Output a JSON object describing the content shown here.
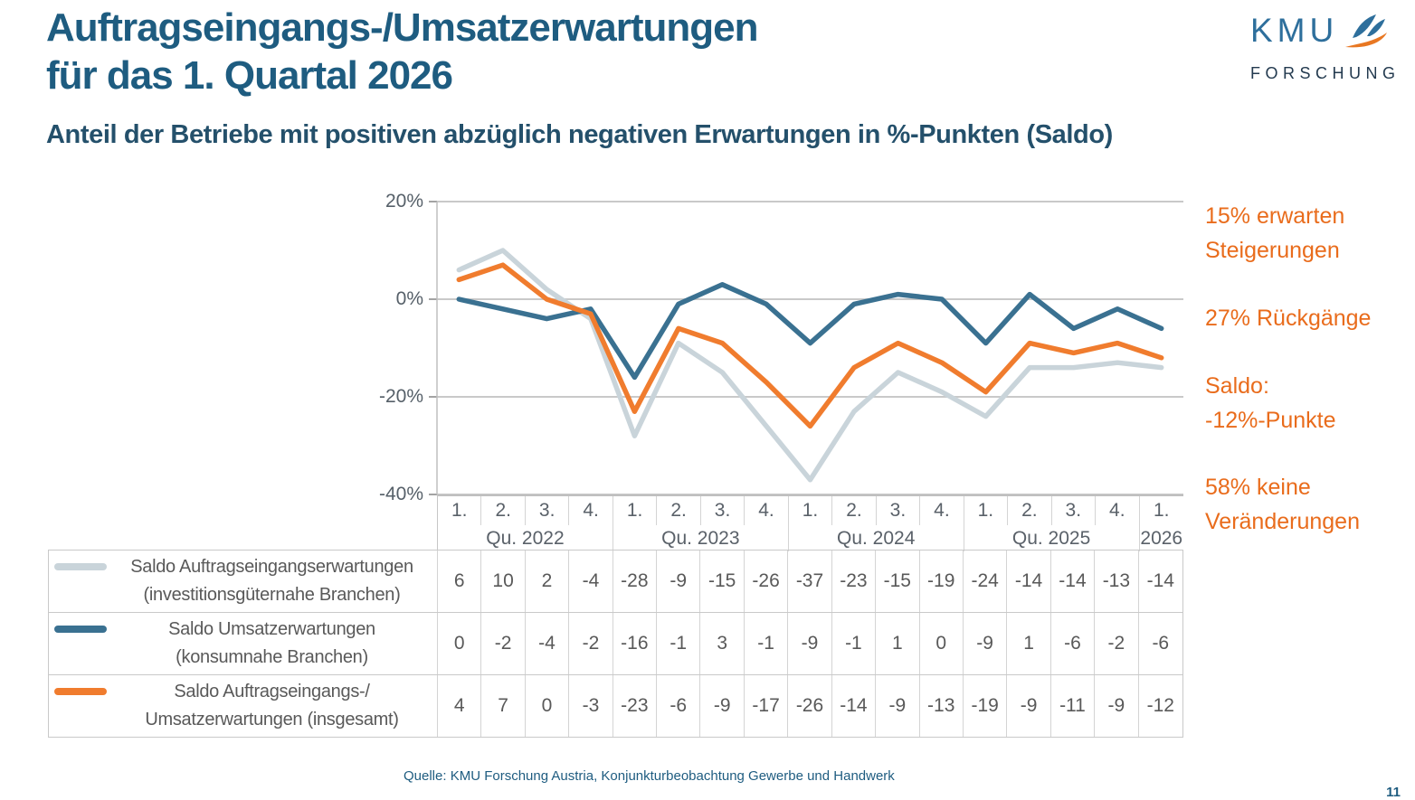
{
  "header": {
    "title_line1": "Auftragseingangs-/Umsatzerwartungen",
    "title_line2": "für das 1. Quartal 2026",
    "subtitle": "Anteil der Betriebe mit positiven abzüglich negativen Erwartungen in %-Punkten (Saldo)"
  },
  "logo": {
    "name": "KMU",
    "sub": "FORSCHUNG",
    "blue": "#2e6f9c",
    "navy": "#233a4f",
    "orange": "#e87722"
  },
  "chart_data": {
    "type": "line",
    "title": "",
    "xlabel": "",
    "ylabel": "",
    "ylim": [
      -40,
      20
    ],
    "ytick_step": 20,
    "ylabels": [
      "20%",
      "0%",
      "-20%",
      "-40%"
    ],
    "grid": true,
    "legend_position": "table-left",
    "x_quarters": [
      "1.",
      "2.",
      "3.",
      "4.",
      "1.",
      "2.",
      "3.",
      "4.",
      "1.",
      "2.",
      "3.",
      "4.",
      "1.",
      "2.",
      "3.",
      "4.",
      "1."
    ],
    "x_years": [
      {
        "label": "Qu. 2022",
        "span": 4
      },
      {
        "label": "Qu. 2023",
        "span": 4
      },
      {
        "label": "Qu. 2024",
        "span": 4
      },
      {
        "label": "Qu. 2025",
        "span": 4
      },
      {
        "label": "2026",
        "span": 1
      }
    ],
    "series": [
      {
        "name": "Saldo Auftragseingangserwartungen (investitionsgüternahe Branchen)",
        "legend_line1": "Saldo Auftragseingangserwartungen",
        "legend_line2": "(investitionsgüternahe Branchen)",
        "color": "#c9d4da",
        "values": [
          6,
          10,
          2,
          -4,
          -28,
          -9,
          -15,
          -26,
          -37,
          -23,
          -15,
          -19,
          -24,
          -14,
          -14,
          -13,
          -14
        ]
      },
      {
        "name": "Saldo Umsatzerwartungen (konsumnahe Branchen)",
        "legend_line1": "Saldo Umsatzerwartungen",
        "legend_line2": "(konsumnahe Branchen)",
        "color": "#3a7191",
        "values": [
          0,
          -2,
          -4,
          -2,
          -16,
          -1,
          3,
          -1,
          -9,
          -1,
          1,
          0,
          -9,
          1,
          -6,
          -2,
          -6
        ]
      },
      {
        "name": "Saldo Auftragseingangs-/ Umsatzerwartungen (insgesamt)",
        "legend_line1": "Saldo Auftragseingangs-/",
        "legend_line2": "Umsatzerwartungen (insgesamt)",
        "color": "#f07c2e",
        "values": [
          4,
          7,
          0,
          -3,
          -23,
          -6,
          -9,
          -17,
          -26,
          -14,
          -9,
          -13,
          -19,
          -9,
          -11,
          -9,
          -12
        ]
      }
    ]
  },
  "annotations": [
    {
      "line1": "15% erwarten",
      "line2": "Steigerungen"
    },
    {
      "line1": "27% Rückgänge",
      "line2": ""
    },
    {
      "line1": "Saldo:",
      "line2": "-12%-Punkte"
    },
    {
      "line1": "58% keine",
      "line2": "Veränderungen"
    }
  ],
  "footer": {
    "source": "Quelle: KMU Forschung Austria, Konjunkturbeobachtung Gewerbe und Handwerk",
    "page_number": "11"
  },
  "colors": {
    "title_blue": "#1e5c80",
    "subtitle_blue": "#24506b",
    "annotation_orange": "#e96c1c",
    "gridline": "#c9c9c9",
    "axis_line": "#bfbfbf",
    "tick": "#a3a3a3",
    "axis_text": "#566069",
    "table_text": "#595959"
  }
}
